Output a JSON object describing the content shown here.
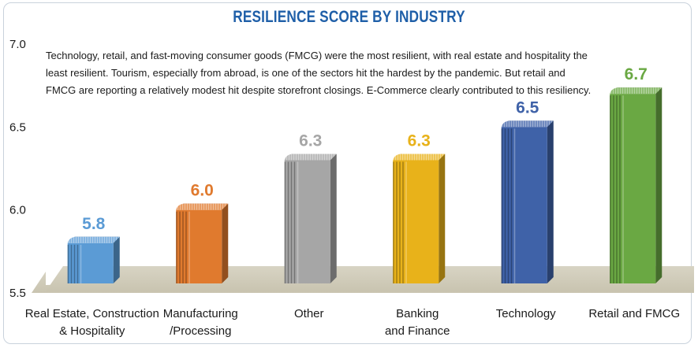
{
  "chart_data": {
    "type": "bar",
    "title": "RESILIENCE SCORE BY INDUSTRY",
    "annotation": "Technology, retail, and fast-moving consumer goods (FMCG) were the most resilient, with real estate and hospitality the least resilient. Tourism, especially from abroad, is one of the sectors hit the hardest by the pandemic. But retail and FMCG are reporting a relatively modest hit despite storefront closings. E-Commerce clearly contributed to this resiliency.",
    "categories": [
      [
        "Real Estate, Construction",
        "& Hospitality"
      ],
      [
        "Manufacturing",
        "/Processing"
      ],
      [
        "Other"
      ],
      [
        "Banking",
        "and Finance"
      ],
      [
        "Technology"
      ],
      [
        "Retail and FMCG"
      ]
    ],
    "values": [
      5.8,
      6.0,
      6.3,
      6.3,
      6.5,
      6.7
    ],
    "value_labels": [
      "5.8",
      "6.0",
      "6.3",
      "6.3",
      "6.5",
      "6.7"
    ],
    "colors": [
      "#5b9bd5",
      "#e07a2e",
      "#a6a6a6",
      "#e8b21a",
      "#3f62a8",
      "#6aa843"
    ],
    "label_colors": [
      "#5b9bd5",
      "#e07a2e",
      "#a6a6a6",
      "#e8b21a",
      "#3f62a8",
      "#6aa843"
    ],
    "ylim": [
      5.5,
      7.0
    ],
    "yticks": [
      "7.0",
      "6.5",
      "6.0",
      "5.5"
    ],
    "xlabel": "",
    "ylabel": ""
  }
}
